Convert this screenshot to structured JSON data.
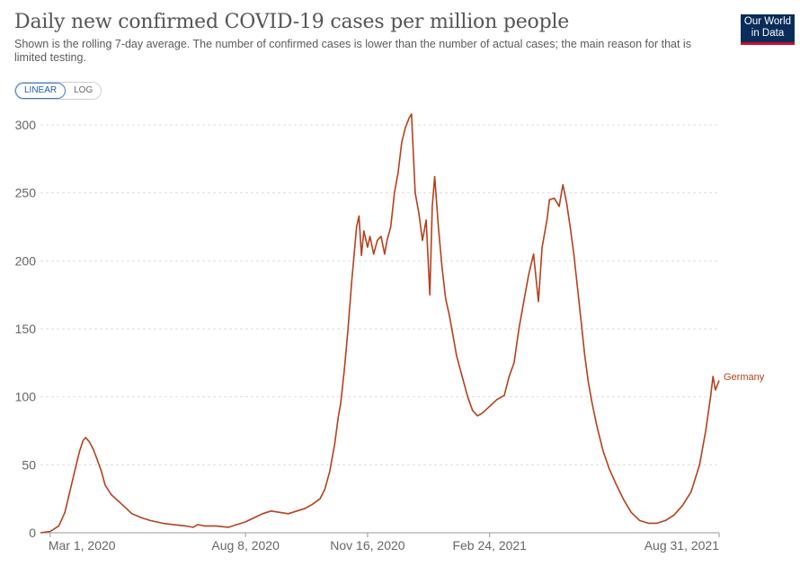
{
  "header": {
    "title": "Daily new confirmed COVID-19 cases per million people",
    "subtitle": "Shown is the rolling 7-day average. The number of confirmed cases is lower than the number of actual cases; the main reason for that is limited testing.",
    "logo_line1": "Our World",
    "logo_line2": "in Data",
    "logo_bg": "#0a2c5a",
    "logo_accent": "#c8102e"
  },
  "scale_toggle": {
    "linear_label": "LINEAR",
    "log_label": "LOG",
    "selected": "LINEAR"
  },
  "chart_data": {
    "type": "line",
    "title": "Daily new confirmed COVID-19 cases per million people",
    "xlabel": "",
    "ylabel": "",
    "ylim": [
      0,
      300
    ],
    "yticks": [
      0,
      50,
      100,
      150,
      200,
      250,
      300
    ],
    "xlim": [
      "2020-02-22",
      "2021-08-31"
    ],
    "xticks": [
      "2020-03-01",
      "2020-08-08",
      "2020-11-16",
      "2021-02-24",
      "2021-08-31"
    ],
    "xtick_labels": [
      "Mar 1, 2020",
      "Aug 8, 2020",
      "Nov 16, 2020",
      "Feb 24, 2021",
      "Aug 31, 2021"
    ],
    "grid": "horizontal dashed",
    "series": [
      {
        "name": "Germany",
        "color": "#b5401c",
        "points": [
          [
            "2020-02-22",
            0
          ],
          [
            "2020-03-01",
            1
          ],
          [
            "2020-03-08",
            5
          ],
          [
            "2020-03-13",
            15
          ],
          [
            "2020-03-17",
            30
          ],
          [
            "2020-03-21",
            45
          ],
          [
            "2020-03-25",
            60
          ],
          [
            "2020-03-28",
            68
          ],
          [
            "2020-03-30",
            70
          ],
          [
            "2020-04-02",
            67
          ],
          [
            "2020-04-05",
            62
          ],
          [
            "2020-04-08",
            55
          ],
          [
            "2020-04-12",
            45
          ],
          [
            "2020-04-15",
            35
          ],
          [
            "2020-04-20",
            28
          ],
          [
            "2020-04-25",
            24
          ],
          [
            "2020-05-01",
            19
          ],
          [
            "2020-05-07",
            14
          ],
          [
            "2020-05-15",
            11
          ],
          [
            "2020-05-22",
            9
          ],
          [
            "2020-06-01",
            7
          ],
          [
            "2020-06-10",
            6
          ],
          [
            "2020-06-20",
            5
          ],
          [
            "2020-06-26",
            4
          ],
          [
            "2020-06-30",
            6
          ],
          [
            "2020-07-05",
            5
          ],
          [
            "2020-07-15",
            5
          ],
          [
            "2020-07-25",
            4
          ],
          [
            "2020-08-01",
            6
          ],
          [
            "2020-08-08",
            8
          ],
          [
            "2020-08-15",
            11
          ],
          [
            "2020-08-22",
            14
          ],
          [
            "2020-08-29",
            16
          ],
          [
            "2020-09-05",
            15
          ],
          [
            "2020-09-12",
            14
          ],
          [
            "2020-09-19",
            16
          ],
          [
            "2020-09-26",
            18
          ],
          [
            "2020-10-02",
            21
          ],
          [
            "2020-10-08",
            25
          ],
          [
            "2020-10-12",
            32
          ],
          [
            "2020-10-16",
            45
          ],
          [
            "2020-10-20",
            65
          ],
          [
            "2020-10-23",
            85
          ],
          [
            "2020-10-25",
            95
          ],
          [
            "2020-10-28",
            120
          ],
          [
            "2020-10-31",
            150
          ],
          [
            "2020-11-03",
            185
          ],
          [
            "2020-11-05",
            205
          ],
          [
            "2020-11-07",
            225
          ],
          [
            "2020-11-09",
            233
          ],
          [
            "2020-11-11",
            204
          ],
          [
            "2020-11-13",
            222
          ],
          [
            "2020-11-16",
            210
          ],
          [
            "2020-11-18",
            218
          ],
          [
            "2020-11-21",
            205
          ],
          [
            "2020-11-24",
            215
          ],
          [
            "2020-11-27",
            218
          ],
          [
            "2020-11-30",
            205
          ],
          [
            "2020-12-02",
            215
          ],
          [
            "2020-12-05",
            225
          ],
          [
            "2020-12-08",
            250
          ],
          [
            "2020-12-11",
            265
          ],
          [
            "2020-12-14",
            287
          ],
          [
            "2020-12-17",
            298
          ],
          [
            "2020-12-20",
            305
          ],
          [
            "2020-12-22",
            308
          ],
          [
            "2020-12-25",
            250
          ],
          [
            "2020-12-28",
            235
          ],
          [
            "2020-12-31",
            215
          ],
          [
            "2021-01-03",
            230
          ],
          [
            "2021-01-06",
            175
          ],
          [
            "2021-01-08",
            240
          ],
          [
            "2021-01-10",
            262
          ],
          [
            "2021-01-13",
            225
          ],
          [
            "2021-01-16",
            195
          ],
          [
            "2021-01-19",
            172
          ],
          [
            "2021-01-22",
            160
          ],
          [
            "2021-01-25",
            145
          ],
          [
            "2021-01-28",
            130
          ],
          [
            "2021-01-31",
            120
          ],
          [
            "2021-02-03",
            110
          ],
          [
            "2021-02-06",
            100
          ],
          [
            "2021-02-10",
            90
          ],
          [
            "2021-02-14",
            86
          ],
          [
            "2021-02-18",
            88
          ],
          [
            "2021-02-24",
            93
          ],
          [
            "2021-03-02",
            98
          ],
          [
            "2021-03-08",
            101
          ],
          [
            "2021-03-12",
            115
          ],
          [
            "2021-03-16",
            125
          ],
          [
            "2021-03-20",
            150
          ],
          [
            "2021-03-24",
            170
          ],
          [
            "2021-03-28",
            190
          ],
          [
            "2021-04-01",
            205
          ],
          [
            "2021-04-05",
            170
          ],
          [
            "2021-04-08",
            210
          ],
          [
            "2021-04-12",
            230
          ],
          [
            "2021-04-14",
            245
          ],
          [
            "2021-04-18",
            246
          ],
          [
            "2021-04-22",
            240
          ],
          [
            "2021-04-25",
            256
          ],
          [
            "2021-04-28",
            243
          ],
          [
            "2021-05-01",
            225
          ],
          [
            "2021-05-04",
            205
          ],
          [
            "2021-05-07",
            180
          ],
          [
            "2021-05-10",
            155
          ],
          [
            "2021-05-13",
            130
          ],
          [
            "2021-05-16",
            110
          ],
          [
            "2021-05-19",
            95
          ],
          [
            "2021-05-23",
            78
          ],
          [
            "2021-05-28",
            60
          ],
          [
            "2021-06-02",
            47
          ],
          [
            "2021-06-08",
            35
          ],
          [
            "2021-06-14",
            24
          ],
          [
            "2021-06-20",
            15
          ],
          [
            "2021-06-27",
            9
          ],
          [
            "2021-07-04",
            7
          ],
          [
            "2021-07-11",
            7
          ],
          [
            "2021-07-18",
            9
          ],
          [
            "2021-07-25",
            13
          ],
          [
            "2021-08-01",
            20
          ],
          [
            "2021-08-08",
            30
          ],
          [
            "2021-08-15",
            50
          ],
          [
            "2021-08-20",
            75
          ],
          [
            "2021-08-24",
            100
          ],
          [
            "2021-08-26",
            115
          ],
          [
            "2021-08-28",
            105
          ],
          [
            "2021-08-31",
            112
          ]
        ]
      }
    ],
    "legend": "end-of-line label, right"
  }
}
